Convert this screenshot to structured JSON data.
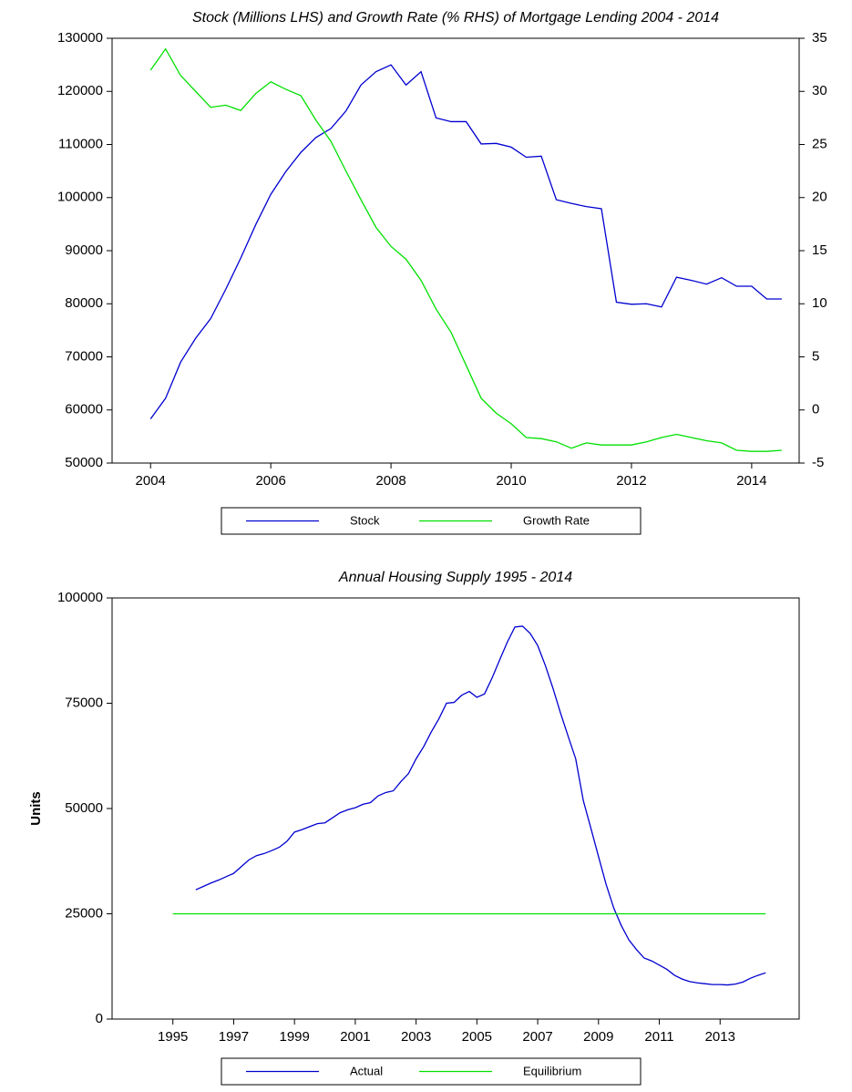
{
  "chart_data": [
    {
      "type": "line",
      "title": "Stock (Millions LHS) and Growth Rate (% RHS) of Mortgage Lending 2004 - 2014",
      "x": [
        2004,
        2004.25,
        2004.5,
        2004.75,
        2005,
        2005.25,
        2005.5,
        2005.75,
        2006,
        2006.25,
        2006.5,
        2006.75,
        2007,
        2007.25,
        2007.5,
        2007.75,
        2008,
        2008.25,
        2008.5,
        2008.75,
        2009,
        2009.25,
        2009.5,
        2009.75,
        2010,
        2010.25,
        2010.5,
        2010.75,
        2011,
        2011.25,
        2011.5,
        2011.75,
        2012,
        2012.25,
        2012.5,
        2012.75,
        2013,
        2013.25,
        2013.5,
        2013.75,
        2014,
        2014.25,
        2014.5
      ],
      "xlim": [
        2003.36,
        2014.79
      ],
      "xticks": [
        2004,
        2006,
        2008,
        2010,
        2012,
        2014
      ],
      "ylim": [
        50000,
        130000
      ],
      "yticks": [
        50000,
        60000,
        70000,
        80000,
        90000,
        100000,
        110000,
        120000,
        130000
      ],
      "y2lim": [
        -5,
        35
      ],
      "y2ticks": [
        -5,
        0,
        5,
        10,
        15,
        20,
        25,
        30,
        35
      ],
      "legend": "bottom",
      "series": [
        {
          "name": "Stock",
          "color": "#0000d0",
          "values": [
            58300,
            62200,
            69000,
            73500,
            77200,
            82700,
            88600,
            94900,
            100600,
            104900,
            108500,
            111300,
            113000,
            116300,
            121200,
            123700,
            125000,
            121200,
            123700,
            115000,
            114300,
            114300,
            110100,
            110200,
            109500,
            107600,
            107800,
            99600,
            98900,
            98300,
            97900,
            80300,
            79900,
            80000,
            79400,
            85000,
            84400,
            83700,
            84900,
            83300,
            83300,
            80900,
            80900
          ]
        },
        {
          "name": "Growth Rate",
          "color": "#00e000",
          "axis": "y2",
          "values": [
            32,
            34,
            31.5,
            30,
            28.5,
            28.7,
            28.2,
            29.8,
            30.9,
            30.2,
            29.6,
            27.3,
            25.3,
            22.5,
            19.8,
            17.2,
            15.4,
            14.2,
            12.2,
            9.5,
            7.3,
            4.2,
            1.1,
            -0.3,
            -1.3,
            -2.6,
            -2.7,
            -3.0,
            -3.6,
            -3.1,
            -3.3,
            -3.3,
            -3.3,
            -3.0,
            -2.6,
            -2.3,
            -2.6,
            -2.9,
            -3.1,
            -3.8,
            -3.9,
            -3.9,
            -3.8
          ]
        }
      ]
    },
    {
      "type": "line",
      "title": "Annual Housing Supply 1995 - 2014",
      "ylabel": "Units",
      "xlim": [
        1993,
        2015.6
      ],
      "xticks": [
        1995,
        1997,
        1999,
        2001,
        2003,
        2005,
        2007,
        2009,
        2011,
        2013
      ],
      "ylim": [
        0,
        100000
      ],
      "yticks": [
        0,
        25000,
        50000,
        75000,
        100000
      ],
      "legend": "bottom",
      "series": [
        {
          "name": "Actual",
          "color": "#0000d0",
          "x": [
            1995.75,
            1996,
            1996.25,
            1996.5,
            1996.75,
            1997,
            1997.25,
            1997.5,
            1997.75,
            1998,
            1998.25,
            1998.5,
            1998.75,
            1999,
            1999.25,
            1999.5,
            1999.75,
            2000,
            2000.25,
            2000.5,
            2000.75,
            2001,
            2001.25,
            2001.5,
            2001.75,
            2002,
            2002.25,
            2002.5,
            2002.75,
            2003,
            2003.25,
            2003.5,
            2003.75,
            2004,
            2004.25,
            2004.5,
            2004.75,
            2005,
            2005.25,
            2005.5,
            2005.75,
            2006,
            2006.25,
            2006.5,
            2006.75,
            2007,
            2007.25,
            2007.5,
            2007.75,
            2008,
            2008.25,
            2008.5,
            2008.75,
            2009,
            2009.25,
            2009.5,
            2009.75,
            2010,
            2010.25,
            2010.5,
            2010.75,
            2011,
            2011.25,
            2011.5,
            2011.75,
            2012,
            2012.25,
            2012.5,
            2012.75,
            2013,
            2013.25,
            2013.5,
            2013.75,
            2014,
            2014.25,
            2014.5
          ],
          "values": [
            30700,
            31500,
            32300,
            33000,
            33800,
            34600,
            36200,
            37800,
            38800,
            39300,
            40000,
            40800,
            42200,
            44400,
            45000,
            45700,
            46400,
            46600,
            47800,
            49000,
            49700,
            50200,
            51000,
            51400,
            53000,
            53800,
            54200,
            56400,
            58300,
            61800,
            64700,
            68200,
            71300,
            75000,
            75200,
            76900,
            77800,
            76400,
            77200,
            81000,
            85300,
            89500,
            93100,
            93300,
            91600,
            88700,
            84000,
            78600,
            72700,
            67200,
            61800,
            51900,
            45300,
            38600,
            32000,
            26400,
            22200,
            18800,
            16500,
            14500,
            13800,
            12800,
            11800,
            10400,
            9500,
            8900,
            8600,
            8400,
            8200,
            8200,
            8100,
            8300,
            8800,
            9700,
            10400,
            11000
          ]
        },
        {
          "name": "Equilibrium",
          "color": "#00e000",
          "x": [
            1995,
            2014.5
          ],
          "values": [
            25000,
            25000
          ]
        }
      ]
    }
  ]
}
